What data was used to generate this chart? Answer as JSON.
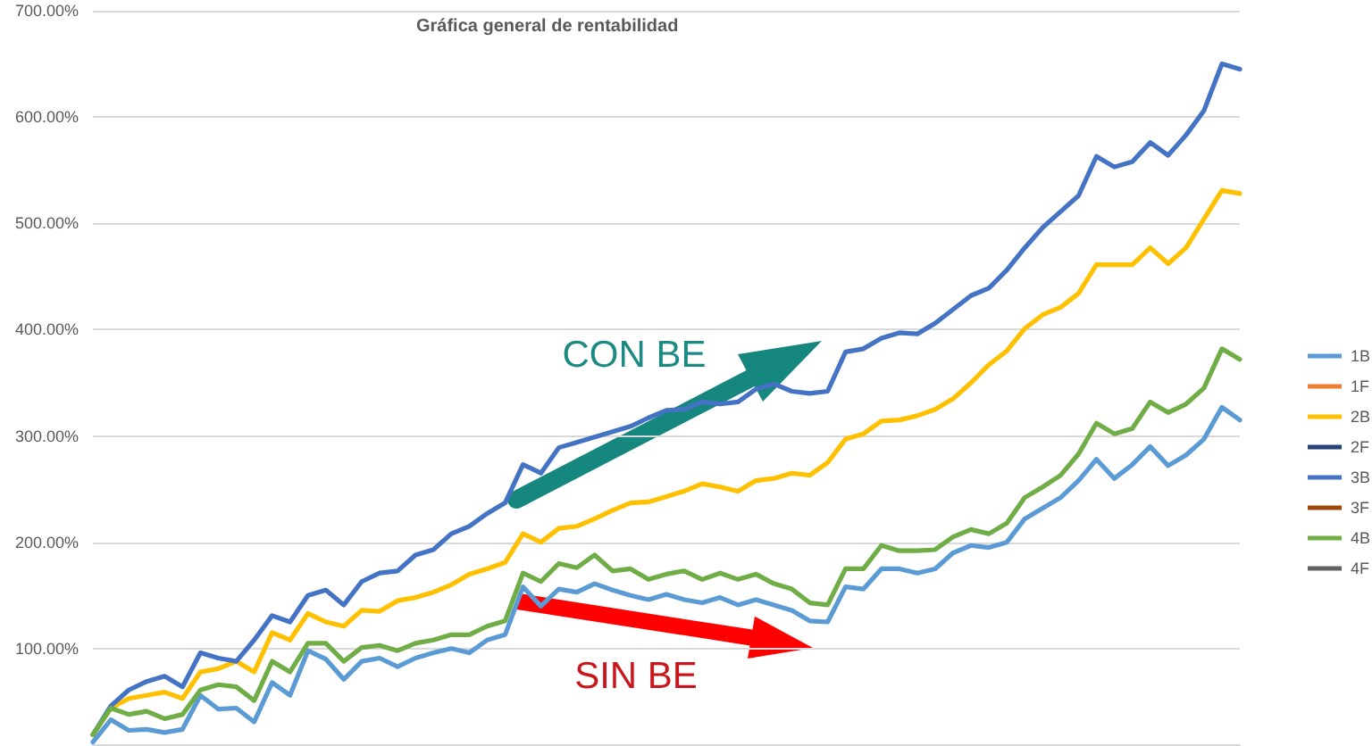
{
  "chart_data": {
    "type": "line",
    "title": "Gráfica general de rentabilidad",
    "categories": [
      null,
      null,
      null,
      null,
      null,
      null,
      null,
      null,
      null,
      null,
      null,
      null,
      null,
      null,
      null,
      null,
      null,
      null,
      null,
      null,
      null,
      null,
      null,
      null,
      null,
      null,
      null,
      null,
      null,
      null,
      null,
      null,
      null,
      null,
      null,
      null,
      null,
      null,
      null,
      null,
      null,
      null,
      null,
      null,
      null,
      null,
      null,
      null,
      null,
      null,
      null,
      null,
      null,
      null,
      null,
      null,
      null,
      null,
      null,
      null,
      null,
      null,
      null,
      null,
      null
    ],
    "series": [
      {
        "name": "1B",
        "color": "#5b9bd5",
        "values": [
          12,
          33,
          23,
          24,
          21,
          24,
          56,
          43,
          44,
          31,
          68,
          56,
          98,
          90,
          71,
          88,
          91,
          83,
          91,
          96,
          100,
          96,
          108,
          113,
          158,
          140,
          156,
          153,
          161,
          155,
          150,
          146,
          151,
          146,
          143,
          148,
          141,
          146,
          141,
          136,
          126,
          125,
          158,
          156,
          175,
          175,
          171,
          175,
          190,
          197,
          195,
          200,
          222,
          232,
          242,
          258,
          278,
          260,
          273,
          290,
          272,
          282,
          297,
          327,
          315
        ]
      },
      {
        "name": "1F",
        "color": "#ed7d31",
        "values": [
          null,
          null,
          null,
          null,
          null,
          null,
          null,
          null,
          null,
          null,
          null,
          null,
          null,
          null,
          null,
          null,
          null,
          null,
          null,
          null,
          null,
          null,
          null,
          null,
          null,
          null,
          null,
          null,
          null,
          null,
          null,
          null,
          null,
          null,
          null,
          null,
          null,
          null,
          null,
          null,
          null,
          null,
          null,
          null,
          null,
          null,
          null,
          null,
          null,
          null,
          null,
          null,
          null,
          null,
          null,
          null,
          null,
          null,
          null,
          null,
          null,
          null,
          null,
          null,
          null
        ]
      },
      {
        "name": "2B",
        "color": "#ffc000",
        "values": [
          19,
          44,
          53,
          56,
          59,
          53,
          78,
          81,
          88,
          78,
          115,
          108,
          133,
          125,
          121,
          136,
          135,
          145,
          148,
          153,
          160,
          170,
          175,
          181,
          208,
          200,
          213,
          215,
          222,
          230,
          237,
          238,
          243,
          248,
          255,
          252,
          248,
          258,
          260,
          265,
          263,
          275,
          297,
          302,
          314,
          315,
          319,
          325,
          335,
          350,
          367,
          380,
          401,
          414,
          421,
          434,
          461,
          461,
          461,
          477,
          462,
          477,
          504,
          531,
          528
        ]
      },
      {
        "name": "2F",
        "color": "#264478",
        "values": [
          null,
          null,
          null,
          null,
          null,
          null,
          null,
          null,
          null,
          null,
          null,
          null,
          null,
          null,
          null,
          null,
          null,
          null,
          null,
          null,
          null,
          null,
          null,
          null,
          null,
          null,
          null,
          null,
          null,
          null,
          null,
          null,
          null,
          null,
          null,
          null,
          null,
          null,
          null,
          null,
          null,
          null,
          null,
          null,
          null,
          null,
          null,
          null,
          null,
          null,
          null,
          null,
          null,
          null,
          null,
          null,
          null,
          null,
          null,
          null,
          null,
          null,
          null,
          null,
          null
        ]
      },
      {
        "name": "3B",
        "color": "#4472c4",
        "values": [
          19,
          46,
          61,
          69,
          74,
          64,
          96,
          91,
          88,
          108,
          131,
          125,
          150,
          155,
          141,
          163,
          171,
          173,
          188,
          193,
          208,
          215,
          227,
          237,
          273,
          265,
          289,
          294,
          299,
          304,
          309,
          317,
          324,
          325,
          332,
          330,
          332,
          344,
          349,
          342,
          340,
          342,
          379,
          382,
          392,
          397,
          396,
          406,
          419,
          432,
          439,
          456,
          477,
          496,
          511,
          526,
          563,
          553,
          558,
          576,
          564,
          583,
          606,
          650,
          645
        ]
      },
      {
        "name": "3F",
        "color": "#9e480e",
        "values": [
          null,
          null,
          null,
          null,
          null,
          null,
          null,
          null,
          null,
          null,
          null,
          null,
          null,
          null,
          null,
          null,
          null,
          null,
          null,
          null,
          null,
          null,
          null,
          null,
          null,
          null,
          null,
          null,
          null,
          null,
          null,
          null,
          null,
          null,
          null,
          null,
          null,
          null,
          null,
          null,
          null,
          null,
          null,
          null,
          null,
          null,
          null,
          null,
          null,
          null,
          null,
          null,
          null,
          null,
          null,
          null,
          null,
          null,
          null,
          null,
          null,
          null,
          null,
          null,
          null
        ]
      },
      {
        "name": "4B",
        "color": "#70ad47",
        "values": [
          19,
          44,
          38,
          41,
          34,
          38,
          61,
          66,
          64,
          51,
          88,
          78,
          105,
          105,
          88,
          101,
          103,
          98,
          105,
          108,
          113,
          113,
          121,
          126,
          171,
          163,
          180,
          176,
          188,
          173,
          175,
          165,
          170,
          173,
          165,
          171,
          165,
          170,
          161,
          156,
          143,
          141,
          175,
          175,
          197,
          192,
          192,
          193,
          205,
          212,
          208,
          218,
          242,
          252,
          263,
          283,
          312,
          302,
          307,
          332,
          322,
          330,
          345,
          382,
          372
        ]
      },
      {
        "name": "4F",
        "color": "#636363",
        "values": [
          null,
          null,
          null,
          null,
          null,
          null,
          null,
          null,
          null,
          null,
          null,
          null,
          null,
          null,
          null,
          null,
          null,
          null,
          null,
          null,
          null,
          null,
          null,
          null,
          null,
          null,
          null,
          null,
          null,
          null,
          null,
          null,
          null,
          null,
          null,
          null,
          null,
          null,
          null,
          null,
          null,
          null,
          null,
          null,
          null,
          null,
          null,
          null,
          null,
          null,
          null,
          null,
          null,
          null,
          null,
          null,
          null,
          null,
          null,
          null,
          null,
          null,
          null,
          null,
          null
        ]
      }
    ],
    "ylim": [
      10,
      700
    ],
    "yticks": [
      {
        "value": 100,
        "label": "100.00%"
      },
      {
        "value": 200,
        "label": "200.00%"
      },
      {
        "value": 300,
        "label": "300.00%"
      },
      {
        "value": 400,
        "label": "400.00%"
      },
      {
        "value": 500,
        "label": "500.00%"
      },
      {
        "value": 600,
        "label": "600.00%"
      },
      {
        "value": 700,
        "label": "700.00%"
      }
    ],
    "grid": "y",
    "legend": "right",
    "tick_labels": "y",
    "marker": "none",
    "annotations": [
      "CON BE",
      "SIN BE"
    ]
  }
}
